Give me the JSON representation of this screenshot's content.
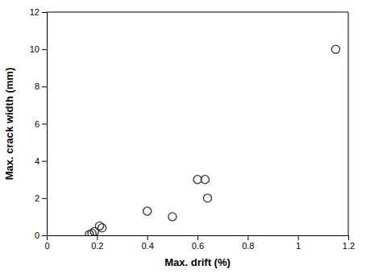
{
  "chart_data": {
    "type": "scatter",
    "xlabel": "Max. drift (%)",
    "ylabel": "Max. crack width (mm)",
    "x": [
      0.17,
      0.18,
      0.19,
      0.21,
      0.22,
      0.4,
      0.5,
      0.6,
      0.63,
      0.64,
      1.15
    ],
    "values": [
      0.05,
      0.1,
      0.2,
      0.5,
      0.4,
      1.3,
      1.0,
      3.0,
      3.0,
      2.0,
      10.0
    ],
    "xlim": [
      0,
      1.2
    ],
    "ylim": [
      0,
      12
    ],
    "xticks": [
      0,
      0.2,
      0.4,
      0.6,
      0.8,
      1,
      1.2
    ],
    "yticks": [
      0,
      2,
      4,
      6,
      8,
      10,
      12
    ],
    "color": "#333333",
    "marker": "circle",
    "grid": false
  }
}
